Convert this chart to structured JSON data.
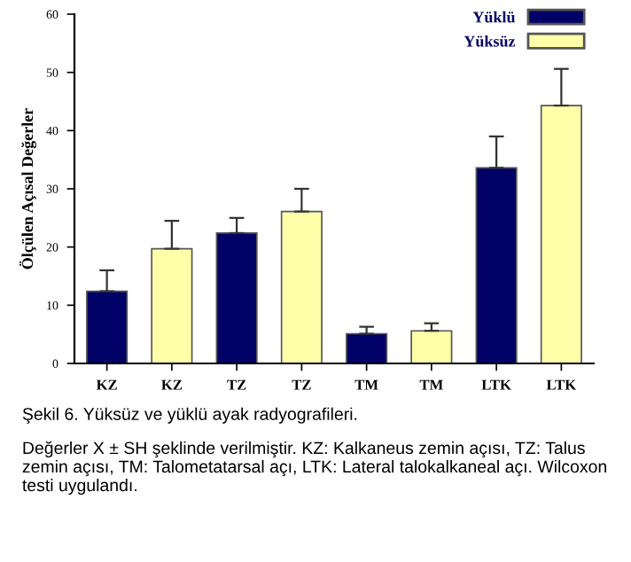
{
  "chart_data": {
    "type": "bar",
    "ylabel": "Ölçülen Açısal Değerler",
    "categories": [
      "KZ",
      "KZ",
      "TZ",
      "TZ",
      "TM",
      "TM",
      "LTK",
      "LTK"
    ],
    "series": [
      {
        "name": "Yüklü",
        "color": "#000066",
        "values": [
          12.4,
          null,
          22.4,
          null,
          5.1,
          null,
          33.6,
          null
        ],
        "errors": [
          [
            12.4,
            16
          ],
          null,
          [
            22.4,
            25
          ],
          null,
          [
            5.1,
            6.3
          ],
          null,
          [
            33.6,
            39
          ],
          null
        ]
      },
      {
        "name": "Yüksüz",
        "color": "#ffffaa",
        "values": [
          null,
          19.7,
          null,
          26.1,
          null,
          5.6,
          null,
          44.3
        ],
        "errors": [
          null,
          [
            19.7,
            24.5
          ],
          null,
          [
            26.1,
            30
          ],
          null,
          [
            5.6,
            6.9
          ],
          null,
          [
            44.3,
            50.6
          ]
        ]
      }
    ],
    "ylim": [
      0,
      60
    ],
    "yticks": [
      0,
      10,
      20,
      30,
      40,
      50,
      60
    ],
    "grid": false,
    "legend": "top right",
    "annotations": [
      "Şekil 6. Yüksüz ve yüklü ayak radyografileri.",
      "Değerler X ± SH şeklinde verilmiştir. KZ: Kalkaneus zemin açısı, TZ: Talus zemin açısı, TM: Talometatarsal açı, LTK: Lateral talokalkaneal açı. Wilcoxon testi uygulandı."
    ]
  }
}
